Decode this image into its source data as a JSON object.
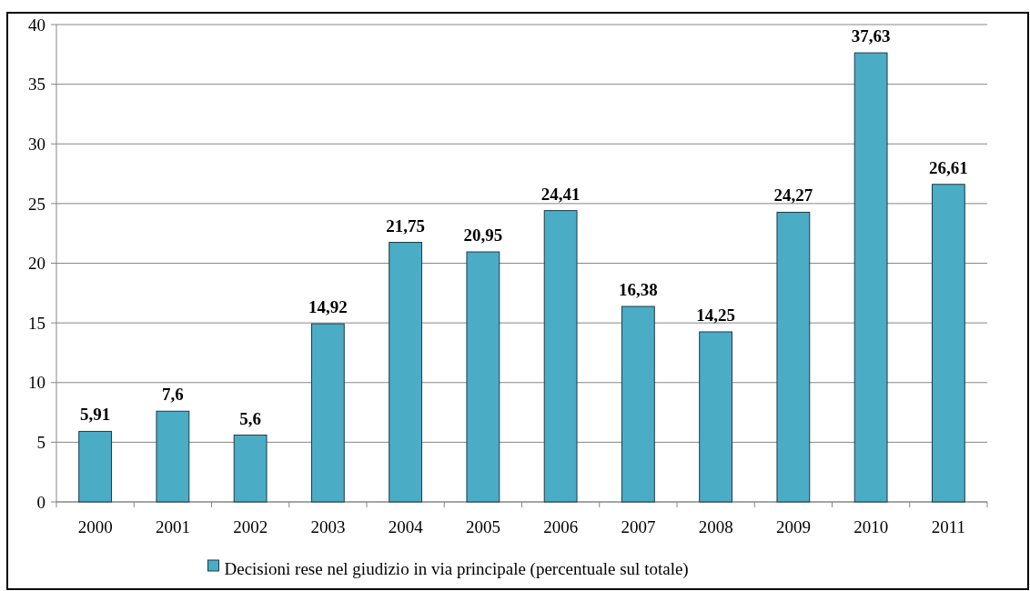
{
  "chart_data": {
    "type": "bar",
    "categories": [
      "2000",
      "2001",
      "2002",
      "2003",
      "2004",
      "2005",
      "2006",
      "2007",
      "2008",
      "2009",
      "2010",
      "2011"
    ],
    "series": [
      {
        "name": "Decisioni rese nel giudizio in via principale (percentuale sul totale)",
        "color": "#4bacc6",
        "values": [
          5.91,
          7.6,
          5.6,
          14.92,
          21.75,
          20.95,
          24.41,
          16.38,
          14.25,
          24.27,
          37.63,
          26.61
        ],
        "value_labels": [
          "5,91",
          "7,6",
          "5,6",
          "14,92",
          "21,75",
          "20,95",
          "24,41",
          "16,38",
          "14,25",
          "24,27",
          "37,63",
          "26,61"
        ]
      }
    ],
    "ylim": [
      0,
      40
    ],
    "yticks": [
      0,
      5,
      10,
      15,
      20,
      25,
      30,
      35,
      40
    ],
    "grid": "y",
    "legend": "bottom"
  }
}
